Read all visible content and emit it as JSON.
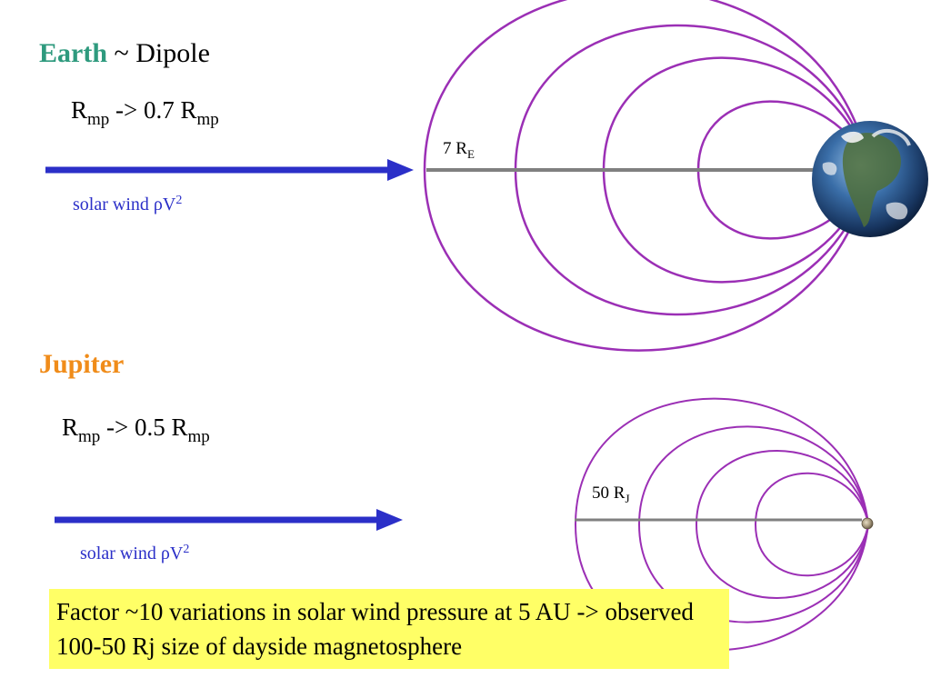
{
  "earth": {
    "planet": "Earth",
    "title_rest": " ~ Dipole",
    "rmp": {
      "r": "R",
      "sub": "mp",
      "middle": " -> 0.7 R",
      "sub2": "mp"
    },
    "solar_wind": {
      "text": "solar wind ",
      "rho": "ρ",
      "v": "V",
      "sup": "2"
    },
    "distance": {
      "value": "7 R",
      "sub": "E"
    }
  },
  "jupiter": {
    "planet": "Jupiter",
    "rmp": {
      "r": "R",
      "sub": "mp",
      "middle": " -> 0.5 R",
      "sub2": "mp"
    },
    "solar_wind": {
      "text": "solar wind ",
      "rho": "ρ",
      "v": "V",
      "sup": "2"
    },
    "distance": {
      "value": "50 R",
      "sub": "J"
    }
  },
  "note": "Factor ~10 variations in solar wind pressure at 5 AU -> observed 100-50 Rj size of dayside magnetosphere",
  "colors": {
    "earth_label": "#2e9a7e",
    "jupiter_label": "#f08c1a",
    "arrow": "#2b2fc8",
    "field_line_earth": "#9b2fb5",
    "field_line_jupiter": "#9b2fb5",
    "axis_line": "#808080",
    "note_bg": "#ffff66"
  }
}
